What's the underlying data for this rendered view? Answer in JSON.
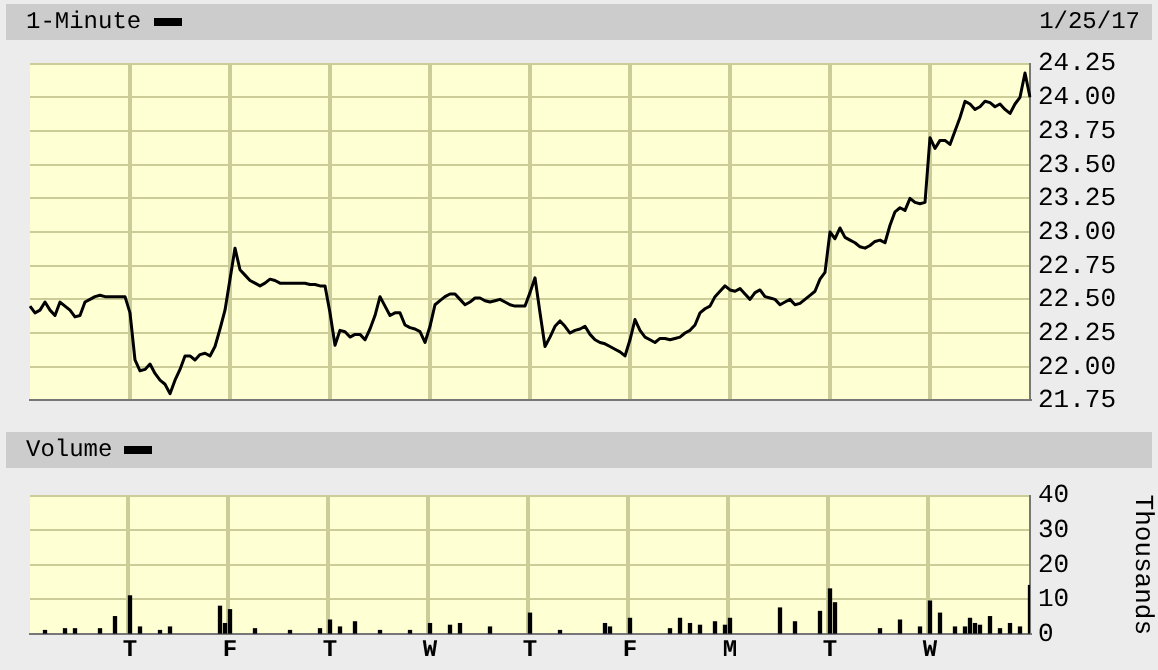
{
  "chart_data": [
    {
      "type": "line",
      "legend": "top left",
      "annotations": [
        "1/25/17"
      ],
      "grid": true,
      "categories": [
        null,
        null,
        null,
        null,
        null,
        null,
        null,
        null,
        null,
        null,
        null,
        null,
        null,
        null,
        null,
        null,
        null,
        null,
        null,
        null,
        null,
        null,
        null,
        null,
        null,
        null,
        null,
        null,
        null,
        null,
        null,
        null,
        null,
        null,
        null,
        null,
        null,
        null,
        null,
        null,
        null,
        null,
        null,
        null,
        null,
        null,
        null,
        null,
        null,
        null,
        null,
        null,
        null,
        null,
        null,
        null,
        null,
        null,
        null,
        null,
        null,
        null,
        null,
        null,
        null,
        null,
        null,
        null,
        null,
        null,
        null,
        null,
        null,
        null,
        null,
        null,
        null,
        null,
        null,
        null,
        null,
        null,
        null,
        null,
        null,
        null,
        null,
        null,
        null,
        null,
        null,
        null,
        null,
        null,
        null,
        null,
        null,
        null,
        null,
        null,
        null,
        null,
        null,
        null,
        null,
        null,
        null,
        null,
        null,
        null,
        null,
        null,
        null,
        null,
        null,
        null,
        null,
        null,
        null,
        null,
        null,
        null,
        null,
        null,
        null,
        null,
        null,
        null,
        null,
        null,
        null,
        null,
        null,
        null,
        null,
        null,
        null,
        null,
        null,
        null,
        null,
        null,
        null,
        null,
        null,
        null,
        null,
        null,
        null,
        null,
        null,
        null,
        null,
        null,
        null,
        null,
        null,
        null,
        null,
        null,
        null,
        null,
        null,
        null,
        null,
        null,
        null,
        null,
        null,
        null,
        null,
        null,
        null,
        null,
        null,
        null,
        null,
        null,
        null,
        null,
        null,
        null,
        null,
        null,
        null,
        null,
        null,
        null,
        null,
        null,
        null,
        null,
        null,
        null,
        null,
        null,
        null,
        null,
        null,
        null,
        null
      ],
      "ylim": [
        21.75,
        24.25
      ],
      "yticks": [
        {
          "value": 21.75,
          "label": "21.75"
        },
        {
          "value": 22,
          "label": "22.00"
        },
        {
          "value": 22.25,
          "label": "22.25"
        },
        {
          "value": 22.5,
          "label": "22.50"
        },
        {
          "value": 22.75,
          "label": "22.75"
        },
        {
          "value": 23,
          "label": "23.00"
        },
        {
          "value": 23.25,
          "label": "23.25"
        },
        {
          "value": 23.5,
          "label": "23.50"
        },
        {
          "value": 23.75,
          "label": "23.75"
        },
        {
          "value": 24,
          "label": "24.00"
        },
        {
          "value": 24.25,
          "label": "24.25"
        }
      ],
      "series": [
        {
          "name": "1-Minute",
          "color": "#000000",
          "values": [
            22.45,
            22.4,
            22.42,
            22.48,
            22.42,
            22.38,
            22.48,
            22.45,
            22.42,
            22.37,
            22.38,
            22.48,
            22.5,
            22.52,
            22.53,
            22.52,
            22.52,
            22.52,
            22.52,
            22.52,
            22.4,
            22.05,
            21.97,
            21.98,
            22.02,
            21.95,
            21.9,
            21.87,
            21.8,
            21.9,
            21.98,
            22.08,
            22.08,
            22.05,
            22.09,
            22.1,
            22.08,
            22.15,
            22.28,
            22.42,
            22.65,
            22.88,
            22.72,
            22.68,
            22.64,
            22.62,
            22.6,
            22.62,
            22.65,
            22.64,
            22.62,
            22.62,
            22.62,
            22.62,
            22.62,
            22.62,
            22.61,
            22.61,
            22.6,
            22.6,
            22.4,
            22.16,
            22.27,
            22.26,
            22.22,
            22.24,
            22.24,
            22.2,
            22.28,
            22.38,
            22.52,
            22.45,
            22.38,
            22.4,
            22.4,
            22.31,
            22.29,
            22.28,
            22.26,
            22.18,
            22.3,
            22.46,
            22.49,
            22.52,
            22.54,
            22.54,
            22.5,
            22.46,
            22.48,
            22.51,
            22.51,
            22.49,
            22.48,
            22.49,
            22.5,
            22.48,
            22.46,
            22.45,
            22.45,
            22.45,
            22.55,
            22.66,
            22.4,
            22.15,
            22.22,
            22.3,
            22.34,
            22.3,
            22.25,
            22.27,
            22.28,
            22.3,
            22.24,
            22.2,
            22.18,
            22.17,
            22.15,
            22.13,
            22.11,
            22.08,
            22.2,
            22.35,
            22.27,
            22.22,
            22.2,
            22.18,
            22.21,
            22.21,
            22.2,
            22.21,
            22.22,
            22.25,
            22.27,
            22.31,
            22.4,
            22.43,
            22.45,
            22.52,
            22.56,
            22.6,
            22.57,
            22.56,
            22.58,
            22.54,
            22.5,
            22.55,
            22.57,
            22.52,
            22.51,
            22.5,
            22.46,
            22.48,
            22.5,
            22.46,
            22.47,
            22.5,
            22.53,
            22.56,
            22.65,
            22.7,
            23.0,
            22.95,
            23.03,
            22.96,
            22.94,
            22.92,
            22.89,
            22.88,
            22.9,
            22.93,
            22.94,
            22.92,
            23.05,
            23.15,
            23.18,
            23.16,
            23.25,
            23.22,
            23.21,
            23.22,
            23.7,
            23.62,
            23.68,
            23.68,
            23.65,
            23.75,
            23.85,
            23.97,
            23.95,
            23.91,
            23.93,
            23.97,
            23.96,
            23.93,
            23.95,
            23.91,
            23.88,
            23.95,
            24.0,
            24.18,
            24.0
          ]
        }
      ]
    },
    {
      "type": "bar",
      "legend": "top left",
      "grid": true,
      "ylabel": "Thousands",
      "categories": [
        null,
        null,
        null,
        null,
        null,
        null,
        null,
        null,
        null,
        null,
        null,
        null,
        null,
        null,
        null,
        null,
        null,
        null,
        null,
        null,
        "T",
        null,
        null,
        null,
        null,
        null,
        null,
        null,
        null,
        null,
        null,
        null,
        null,
        null,
        null,
        null,
        null,
        null,
        null,
        null,
        "F",
        null,
        null,
        null,
        null,
        null,
        null,
        null,
        null,
        null,
        null,
        null,
        null,
        null,
        null,
        null,
        null,
        null,
        null,
        null,
        "T",
        null,
        null,
        null,
        null,
        null,
        null,
        null,
        null,
        null,
        null,
        null,
        null,
        null,
        null,
        null,
        null,
        null,
        null,
        null,
        "W",
        null,
        null,
        null,
        null,
        null,
        null,
        null,
        null,
        null,
        null,
        null,
        null,
        null,
        null,
        null,
        null,
        null,
        null,
        null,
        "T",
        null,
        null,
        null,
        null,
        null,
        null,
        null,
        null,
        null,
        null,
        null,
        null,
        null,
        null,
        null,
        null,
        null,
        null,
        null,
        "F",
        null,
        null,
        null,
        null,
        null,
        null,
        null,
        null,
        null,
        null,
        null,
        null,
        null,
        null,
        null,
        null,
        null,
        null,
        null,
        "M",
        null,
        null,
        null,
        null,
        null,
        null,
        null,
        null,
        null,
        null,
        null,
        null,
        null,
        null,
        null,
        null,
        null,
        null,
        null,
        "T",
        null,
        null,
        null,
        null,
        null,
        null,
        null,
        null,
        null,
        null,
        null,
        null,
        null,
        null,
        null,
        null,
        null,
        null,
        null,
        "W",
        null,
        null,
        null,
        null,
        null,
        null,
        null,
        null,
        null,
        null,
        null,
        null,
        null,
        null,
        null,
        null,
        null,
        null,
        null,
        null
      ],
      "ylim": [
        0,
        40
      ],
      "yticks": [
        0,
        10,
        20,
        30,
        40
      ],
      "series": [
        {
          "name": "Volume",
          "color": "#000000",
          "values": [
            null,
            null,
            null,
            1,
            null,
            null,
            null,
            1.5,
            null,
            1.5,
            null,
            null,
            null,
            null,
            1.5,
            null,
            null,
            5,
            null,
            null,
            11,
            null,
            2,
            null,
            null,
            null,
            1,
            null,
            2,
            null,
            null,
            null,
            null,
            null,
            null,
            null,
            null,
            null,
            8,
            3,
            7,
            null,
            null,
            null,
            null,
            1.5,
            null,
            null,
            null,
            null,
            null,
            null,
            1,
            null,
            null,
            null,
            null,
            null,
            1.5,
            null,
            4,
            null,
            2,
            null,
            null,
            3.5,
            null,
            null,
            null,
            null,
            1,
            null,
            null,
            null,
            null,
            null,
            1,
            null,
            null,
            null,
            3,
            null,
            null,
            null,
            2.5,
            null,
            3,
            null,
            null,
            null,
            null,
            null,
            2,
            null,
            null,
            null,
            null,
            null,
            null,
            null,
            6,
            null,
            null,
            null,
            null,
            null,
            1,
            null,
            null,
            null,
            null,
            null,
            null,
            null,
            null,
            3,
            2,
            null,
            null,
            null,
            4.5,
            null,
            null,
            null,
            null,
            null,
            null,
            null,
            1.5,
            null,
            4.5,
            null,
            3,
            null,
            2.5,
            null,
            null,
            3.5,
            null,
            2.5,
            4.5,
            null,
            null,
            null,
            null,
            null,
            null,
            null,
            null,
            null,
            7.5,
            null,
            null,
            3.5,
            null,
            null,
            null,
            null,
            6.5,
            null,
            13,
            9,
            null,
            null,
            null,
            null,
            null,
            null,
            null,
            null,
            1.5,
            null,
            null,
            null,
            4,
            null,
            null,
            null,
            2,
            null,
            9.5,
            null,
            6,
            null,
            null,
            2,
            null,
            2,
            4.5,
            3,
            2.5,
            null,
            5,
            null,
            1.5,
            null,
            3,
            null,
            2,
            null,
            14
          ]
        }
      ]
    }
  ]
}
